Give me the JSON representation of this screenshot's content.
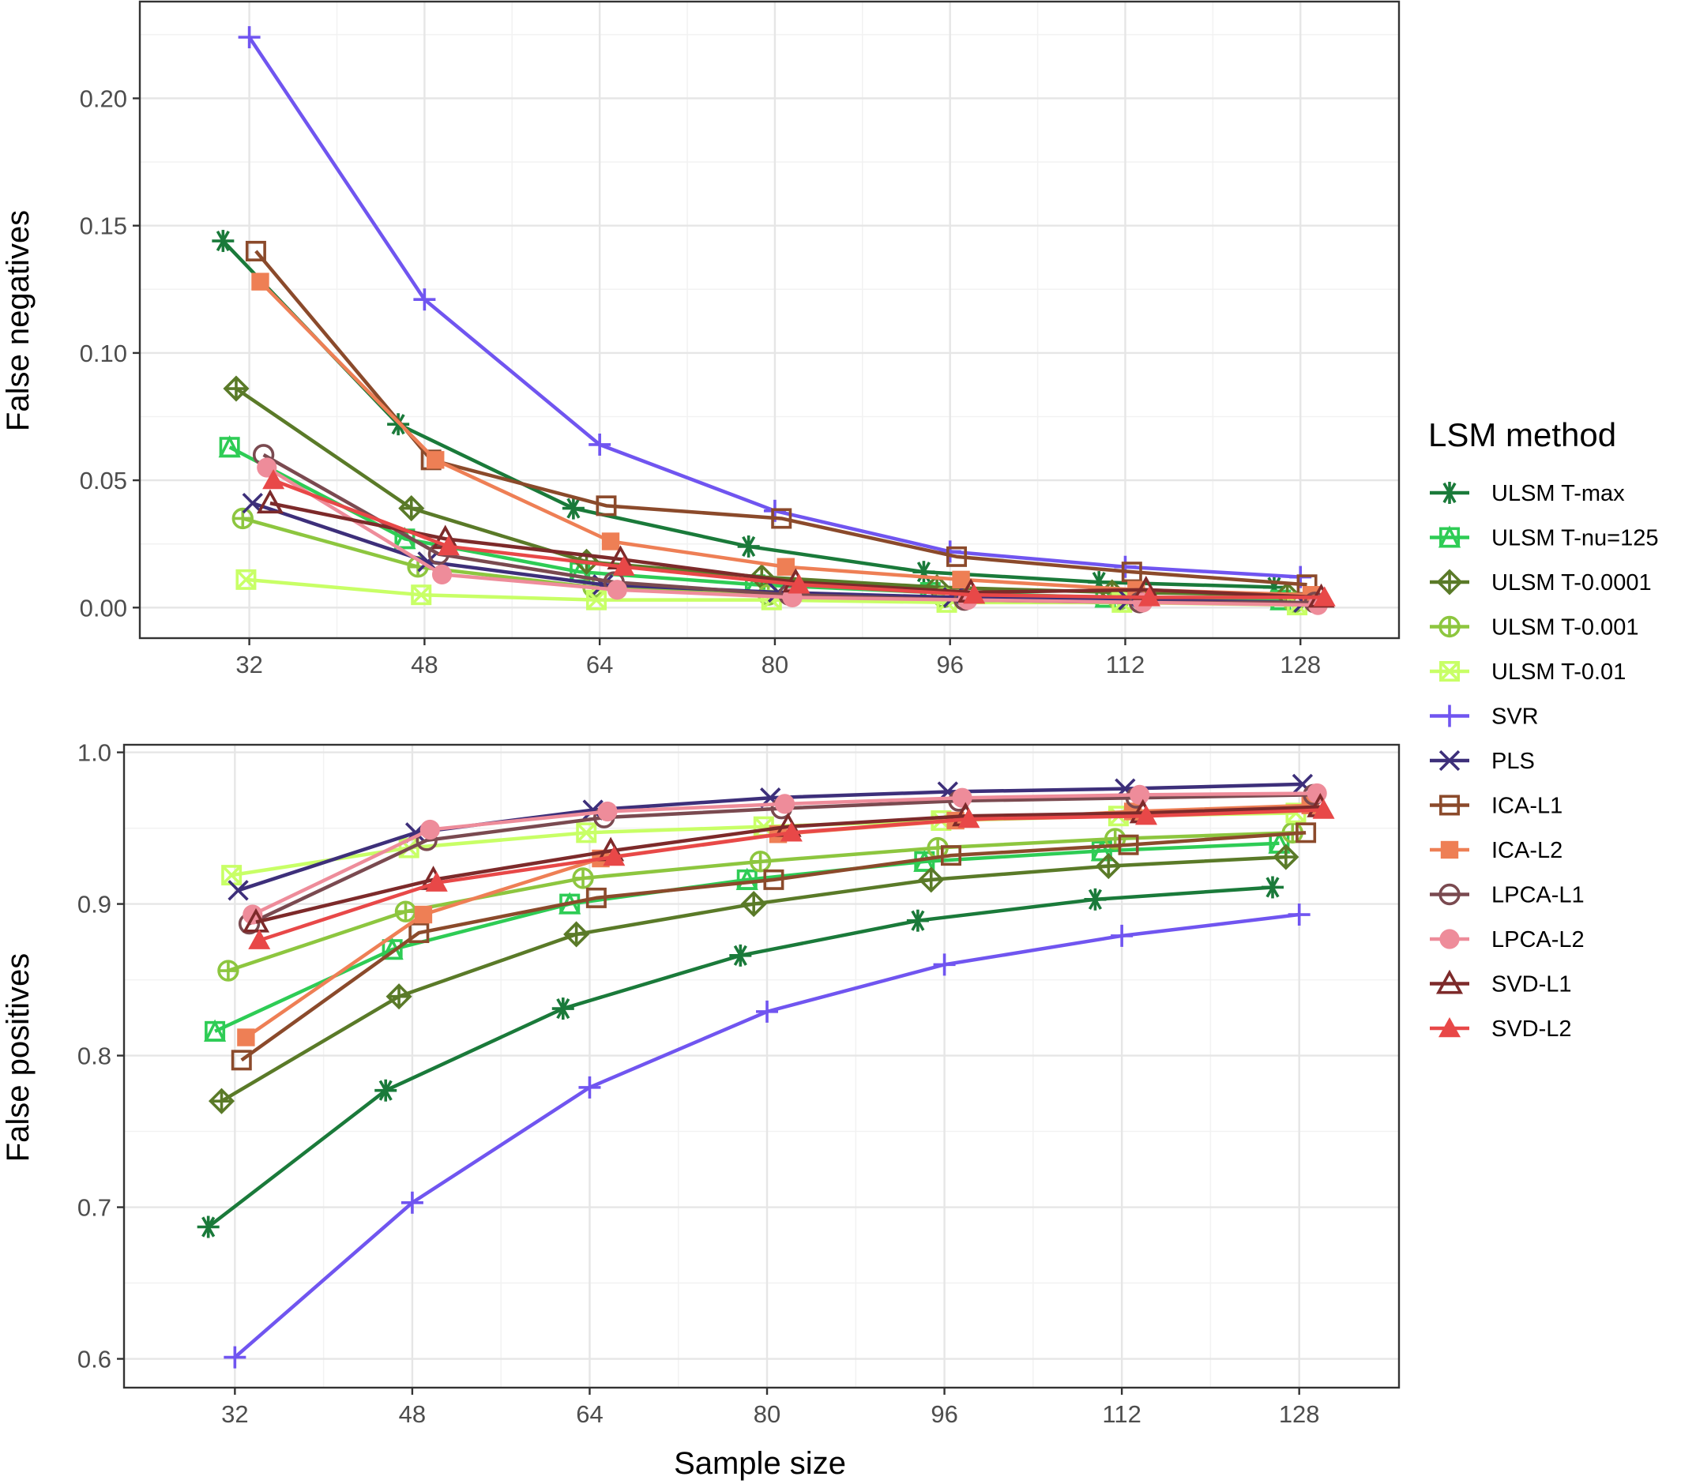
{
  "chart_data": [
    {
      "type": "line",
      "ylabel": "False negatives",
      "xlabel": "",
      "x": [
        32,
        48,
        64,
        80,
        96,
        112,
        128
      ],
      "xlim": [
        22,
        137
      ],
      "ylim": [
        -0.012,
        0.238
      ],
      "yticks": [
        0.0,
        0.05,
        0.1,
        0.15,
        0.2
      ],
      "ytick_labels": [
        "0.00",
        "0.05",
        "0.10",
        "0.15",
        "0.20"
      ],
      "grid": true,
      "series": [
        {
          "name": "ULSM T-max",
          "values": [
            0.144,
            0.072,
            0.039,
            0.024,
            0.014,
            0.01,
            0.008
          ]
        },
        {
          "name": "ULSM T-nu=125",
          "values": [
            0.063,
            0.027,
            0.014,
            0.009,
            0.006,
            0.004,
            0.003
          ]
        },
        {
          "name": "ULSM T-0.0001",
          "values": [
            0.086,
            0.039,
            0.018,
            0.012,
            0.008,
            0.006,
            0.005
          ]
        },
        {
          "name": "ULSM T-0.001",
          "values": [
            0.035,
            0.016,
            0.008,
            0.005,
            0.004,
            0.003,
            0.002
          ]
        },
        {
          "name": "ULSM T-0.01",
          "values": [
            0.011,
            0.005,
            0.003,
            0.003,
            0.002,
            0.002,
            0.001
          ]
        },
        {
          "name": "SVR",
          "values": [
            0.224,
            0.121,
            0.064,
            0.038,
            0.022,
            0.016,
            0.012
          ]
        },
        {
          "name": "PLS",
          "values": [
            0.041,
            0.018,
            0.009,
            0.006,
            0.004,
            0.003,
            0.002
          ]
        },
        {
          "name": "ICA-L1",
          "values": [
            0.14,
            0.058,
            0.04,
            0.035,
            0.02,
            0.014,
            0.009
          ]
        },
        {
          "name": "ICA-L2",
          "values": [
            0.128,
            0.058,
            0.026,
            0.016,
            0.011,
            0.007,
            0.005
          ]
        },
        {
          "name": "LPCA-L1",
          "values": [
            0.06,
            0.021,
            0.01,
            0.005,
            0.003,
            0.002,
            0.002
          ]
        },
        {
          "name": "LPCA-L2",
          "values": [
            0.055,
            0.013,
            0.007,
            0.004,
            0.003,
            0.002,
            0.001
          ]
        },
        {
          "name": "SVD-L1",
          "values": [
            0.041,
            0.027,
            0.019,
            0.01,
            0.006,
            0.007,
            0.004
          ]
        },
        {
          "name": "SVD-L2",
          "values": [
            0.05,
            0.024,
            0.016,
            0.009,
            0.005,
            0.004,
            0.004
          ]
        }
      ]
    },
    {
      "type": "line",
      "ylabel": "False positives",
      "xlabel": "Sample size",
      "x": [
        32,
        48,
        64,
        80,
        96,
        112,
        128
      ],
      "xlim": [
        22,
        137
      ],
      "ylim": [
        0.581,
        1.005
      ],
      "yticks": [
        0.6,
        0.7,
        0.8,
        0.9,
        1.0
      ],
      "ytick_labels": [
        "0.6",
        "0.7",
        "0.8",
        "0.9",
        "1.0"
      ],
      "grid": true,
      "series": [
        {
          "name": "ULSM T-max",
          "values": [
            0.687,
            0.777,
            0.831,
            0.866,
            0.889,
            0.903,
            0.911
          ]
        },
        {
          "name": "ULSM T-nu=125",
          "values": [
            0.816,
            0.87,
            0.9,
            0.916,
            0.928,
            0.935,
            0.94
          ]
        },
        {
          "name": "ULSM T-0.0001",
          "values": [
            0.77,
            0.839,
            0.88,
            0.9,
            0.916,
            0.925,
            0.931
          ]
        },
        {
          "name": "ULSM T-0.001",
          "values": [
            0.856,
            0.895,
            0.917,
            0.928,
            0.937,
            0.943,
            0.947
          ]
        },
        {
          "name": "ULSM T-0.01",
          "values": [
            0.919,
            0.937,
            0.947,
            0.951,
            0.955,
            0.958,
            0.96
          ]
        },
        {
          "name": "SVR",
          "values": [
            0.601,
            0.703,
            0.779,
            0.829,
            0.86,
            0.879,
            0.893
          ]
        },
        {
          "name": "PLS",
          "values": [
            0.909,
            0.947,
            0.962,
            0.97,
            0.974,
            0.976,
            0.979
          ]
        },
        {
          "name": "ICA-L1",
          "values": [
            0.797,
            0.881,
            0.904,
            0.916,
            0.932,
            0.939,
            0.947
          ]
        },
        {
          "name": "ICA-L2",
          "values": [
            0.812,
            0.893,
            0.93,
            0.946,
            0.955,
            0.961,
            0.965
          ]
        },
        {
          "name": "LPCA-L1",
          "values": [
            0.887,
            0.942,
            0.957,
            0.963,
            0.968,
            0.97,
            0.972
          ]
        },
        {
          "name": "LPCA-L2",
          "values": [
            0.893,
            0.949,
            0.961,
            0.966,
            0.97,
            0.972,
            0.973
          ]
        },
        {
          "name": "SVD-L1",
          "values": [
            0.888,
            0.916,
            0.935,
            0.951,
            0.958,
            0.96,
            0.964
          ]
        },
        {
          "name": "SVD-L2",
          "values": [
            0.876,
            0.914,
            0.931,
            0.947,
            0.956,
            0.958,
            0.962
          ]
        }
      ]
    }
  ],
  "legend": {
    "title": "LSM method",
    "placement": "right",
    "items": [
      {
        "label": "ULSM T-max",
        "color": "#1a7a3a",
        "marker": "asterisk"
      },
      {
        "label": "ULSM T-nu=125",
        "color": "#2ecc55",
        "marker": "square-triangle"
      },
      {
        "label": "ULSM T-0.0001",
        "color": "#5a7a28",
        "marker": "diamond-plus"
      },
      {
        "label": "ULSM T-0.001",
        "color": "#8dc63f",
        "marker": "circle-plus"
      },
      {
        "label": "ULSM T-0.01",
        "color": "#c8ff66",
        "marker": "square-cross"
      },
      {
        "label": "SVR",
        "color": "#7055f0",
        "marker": "plus"
      },
      {
        "label": "PLS",
        "color": "#3d2f7a",
        "marker": "cross"
      },
      {
        "label": "ICA-L1",
        "color": "#8b4a2b",
        "marker": "open-square"
      },
      {
        "label": "ICA-L2",
        "color": "#ee7f55",
        "marker": "filled-square"
      },
      {
        "label": "LPCA-L1",
        "color": "#7a4a50",
        "marker": "open-circle"
      },
      {
        "label": "LPCA-L2",
        "color": "#ee8c9a",
        "marker": "filled-circle"
      },
      {
        "label": "SVD-L1",
        "color": "#7d2a2a",
        "marker": "open-triangle"
      },
      {
        "label": "SVD-L2",
        "color": "#e84848",
        "marker": "filled-triangle"
      }
    ]
  }
}
